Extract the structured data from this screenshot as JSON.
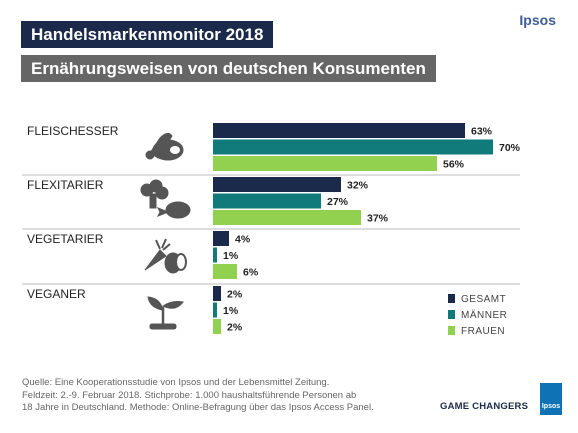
{
  "header": {
    "title": "Handelsmarkenmonitor 2018",
    "subtitle": "Ernährungsweisen von deutschen Konsumenten",
    "brand": "Ipsos"
  },
  "footer": {
    "source_lines": [
      "Quelle: Eine Kooperationsstudie von Ipsos und der Lebensmittel Zeitung.",
      "Feldzeit: 2.-9. Februar 2018. Stichprobe: 1.000 haushaltsführende Personen ab",
      "18 Jahre in Deutschland. Methode: Online-Befragung über das Ipsos Access Panel."
    ],
    "tagline": "GAME CHANGERS",
    "logo_text": "Ipsos"
  },
  "colors": {
    "gesamt": "#1b2a4a",
    "maenner": "#117a7a",
    "frauen": "#92d050"
  },
  "chart_data": {
    "type": "bar",
    "orientation": "horizontal",
    "categories": [
      "FLEISCHESSER",
      "FLEXITARIER",
      "VEGETARIER",
      "VEGANER"
    ],
    "category_icons": [
      "meat-icon",
      "broccoli-chicken-icon",
      "carrot-egg-icon",
      "sprout-icon"
    ],
    "series": [
      {
        "name": "GESAMT",
        "values": [
          63,
          32,
          4,
          2
        ]
      },
      {
        "name": "MÄNNER",
        "values": [
          70,
          27,
          1,
          1
        ]
      },
      {
        "name": "FRAUEN",
        "values": [
          56,
          37,
          6,
          2
        ]
      }
    ],
    "value_suffix": "%",
    "xlim": [
      0,
      75
    ],
    "grid": false,
    "legend_position": "bottom-right"
  }
}
